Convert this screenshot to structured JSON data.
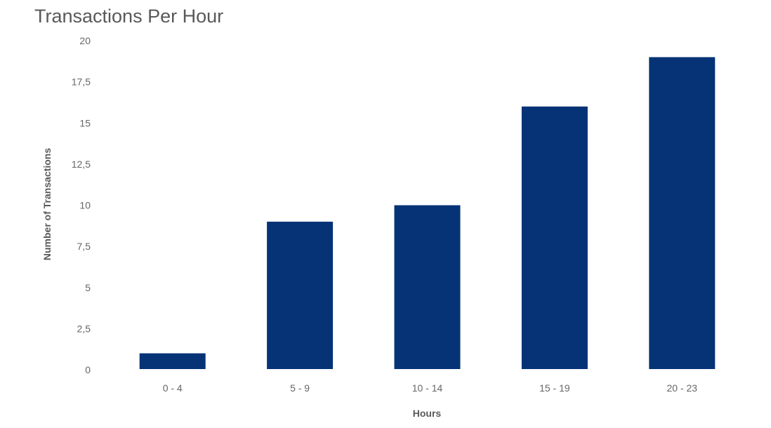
{
  "chart_data": {
    "type": "bar",
    "title": "Transactions Per Hour",
    "xlabel": "Hours",
    "ylabel": "Number of Transactions",
    "categories": [
      "0 - 4",
      "5 - 9",
      "10 - 14",
      "15 - 19",
      "20 - 23"
    ],
    "values": [
      1,
      9,
      10,
      16,
      19
    ],
    "ylim": [
      0,
      20
    ],
    "yticks": [
      0,
      2.5,
      5,
      7.5,
      10,
      12.5,
      15,
      17.5,
      20
    ],
    "ytick_labels": [
      "0",
      "2,5",
      "5",
      "7,5",
      "10",
      "12,5",
      "15",
      "17,5",
      "20"
    ],
    "grid": false,
    "legend": "none",
    "bar_color": "#063376"
  }
}
